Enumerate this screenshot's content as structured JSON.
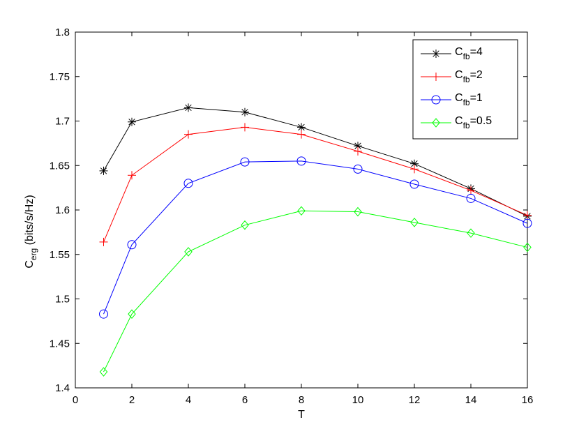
{
  "chart_data": {
    "type": "line",
    "xlabel": "T",
    "ylabel": {
      "main": "C",
      "sub": "erg",
      "rest": " (bits/s/Hz)"
    },
    "xlim": [
      0,
      16
    ],
    "ylim": [
      1.4,
      1.8
    ],
    "xticks": [
      0,
      2,
      4,
      6,
      8,
      10,
      12,
      14,
      16
    ],
    "xtick_labels": [
      "0",
      "2",
      "4",
      "6",
      "8",
      "10",
      "12",
      "14",
      "16"
    ],
    "yticks": [
      1.4,
      1.45,
      1.5,
      1.55,
      1.6,
      1.65,
      1.7,
      1.75,
      1.8
    ],
    "ytick_labels": [
      "1.4",
      "1.45",
      "1.5",
      "1.55",
      "1.6",
      "1.65",
      "1.7",
      "1.75",
      "1.8"
    ],
    "grid": false,
    "legend_position": "top-right",
    "x": [
      1,
      2,
      4,
      6,
      8,
      10,
      12,
      14,
      16
    ],
    "series": [
      {
        "name": "C",
        "name_sub": "fb",
        "name_rest": "=4",
        "color": "#000000",
        "marker": "asterisk",
        "values": [
          1.644,
          1.699,
          1.715,
          1.71,
          1.693,
          1.672,
          1.652,
          1.624,
          1.593
        ]
      },
      {
        "name": "C",
        "name_sub": "fb",
        "name_rest": "=2",
        "color": "#ff0000",
        "marker": "plus",
        "values": [
          1.564,
          1.639,
          1.685,
          1.693,
          1.685,
          1.666,
          1.646,
          1.622,
          1.594
        ]
      },
      {
        "name": "C",
        "name_sub": "fb",
        "name_rest": "=1",
        "color": "#0000ff",
        "marker": "circle",
        "values": [
          1.483,
          1.561,
          1.63,
          1.654,
          1.655,
          1.646,
          1.629,
          1.613,
          1.585
        ]
      },
      {
        "name": "C",
        "name_sub": "fb",
        "name_rest": "=0.5",
        "color": "#00ff00",
        "marker": "diamond",
        "values": [
          1.418,
          1.483,
          1.553,
          1.583,
          1.599,
          1.598,
          1.586,
          1.574,
          1.558
        ]
      }
    ]
  }
}
